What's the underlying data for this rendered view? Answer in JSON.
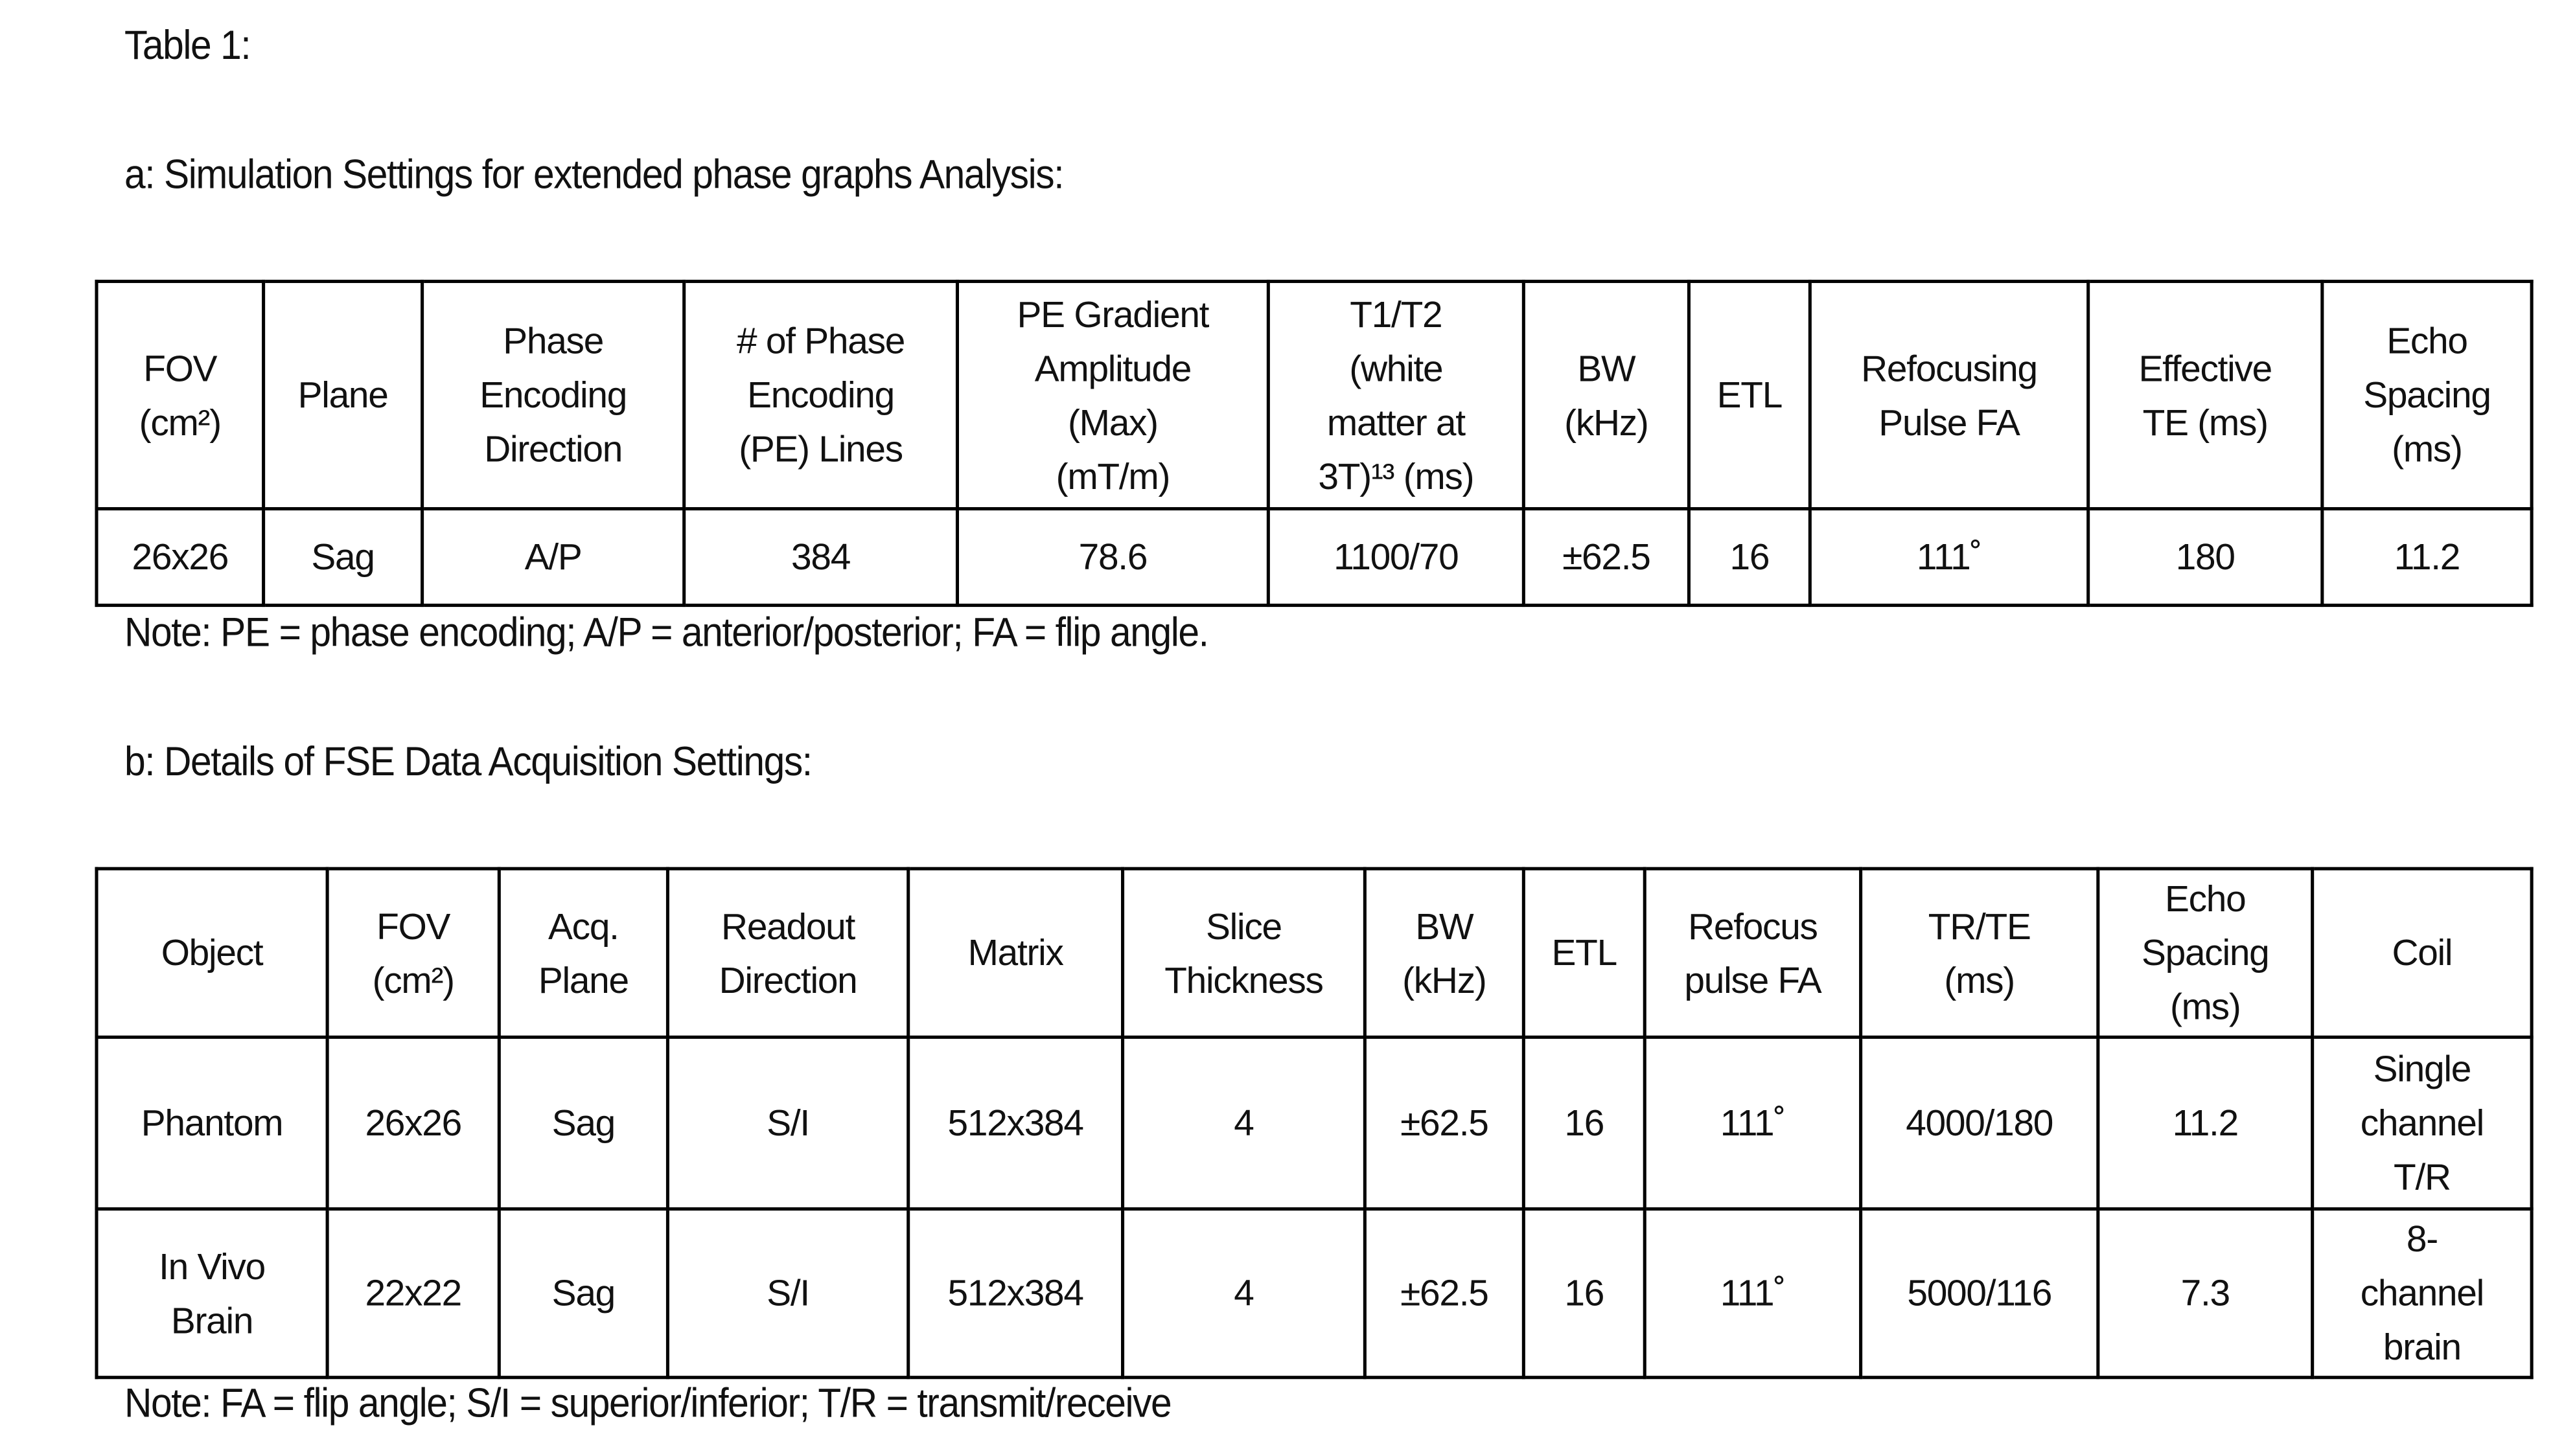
{
  "title": "Table 1:",
  "table_a": {
    "caption": "a: Simulation Settings for extended phase graphs Analysis:",
    "headers": [
      "FOV\n(cm²)",
      "Plane",
      "Phase\nEncoding\nDirection",
      "# of Phase\nEncoding\n(PE) Lines",
      "PE Gradient\nAmplitude\n(Max)\n(mT/m)",
      "T1/T2\n(white\nmatter at\n3T)¹³ (ms)",
      "BW\n(kHz)",
      "ETL",
      "Refocusing\nPulse FA",
      "Effective\nTE (ms)",
      "Echo\nSpacing\n(ms)"
    ],
    "rows": [
      [
        "26x26",
        "Sag",
        "A/P",
        "384",
        "78.6",
        "1100/70",
        "±62.5",
        "16",
        "111˚",
        "180",
        "11.2"
      ]
    ],
    "note": "Note: PE = phase encoding; A/P = anterior/posterior;  FA = flip angle."
  },
  "table_b": {
    "caption": "b: Details of FSE Data Acquisition Settings:",
    "headers": [
      "Object",
      "FOV\n(cm²)",
      "Acq.\nPlane",
      "Readout\nDirection",
      "Matrix",
      "Slice\nThickness",
      "BW\n(kHz)",
      "ETL",
      "Refocus\npulse FA",
      "TR/TE\n(ms)",
      "Echo\nSpacing\n(ms)",
      "Coil"
    ],
    "rows": [
      [
        "Phantom",
        "26x26",
        "Sag",
        "S/I",
        "512x384",
        "4",
        "±62.5",
        "16",
        "111˚",
        "4000/180",
        "11.2",
        "Single\nchannel\nT/R"
      ],
      [
        "In Vivo\nBrain",
        "22x22",
        "Sag",
        "S/I",
        "512x384",
        "4",
        "±62.5",
        "16",
        "111˚",
        "5000/116",
        "7.3",
        "8-\nchannel\nbrain"
      ]
    ],
    "note": "Note: FA = flip angle; S/I = superior/inferior; T/R = transmit/receive"
  }
}
